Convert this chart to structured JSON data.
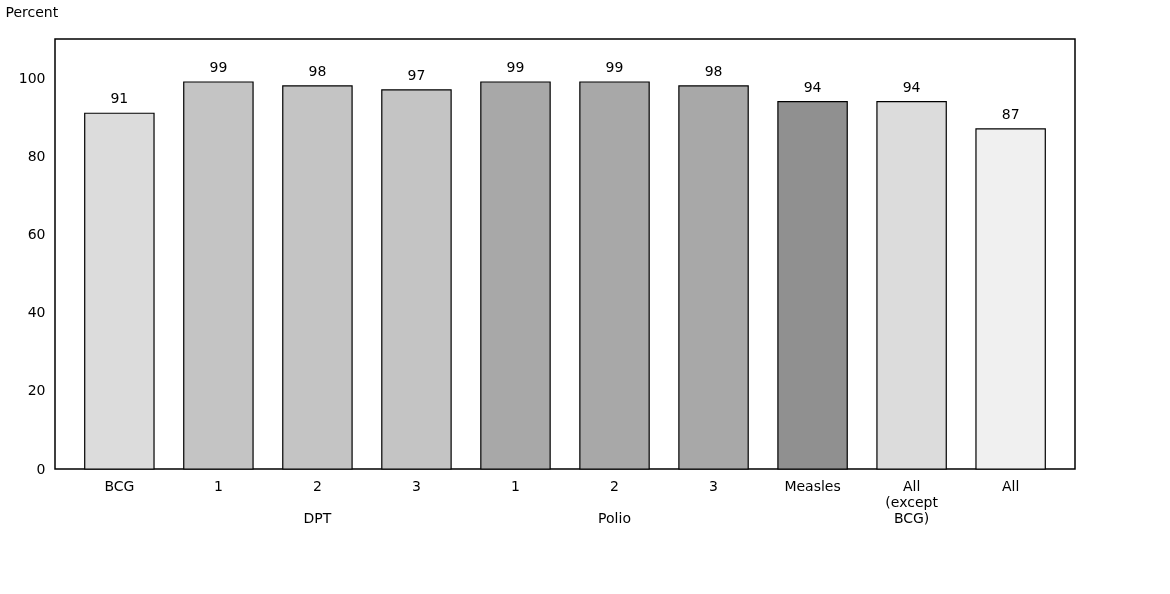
{
  "chart_data": {
    "type": "bar",
    "ylabel": "Percent",
    "categories": [
      "BCG",
      "1",
      "2",
      "3",
      "1",
      "2",
      "3",
      "Measles",
      "All (except BCG)",
      "All"
    ],
    "values": [
      91,
      99,
      98,
      97,
      99,
      99,
      98,
      94,
      94,
      87
    ],
    "colors": [
      "#dcdcdc",
      "#c4c4c4",
      "#c4c4c4",
      "#c4c4c4",
      "#a8a8a8",
      "#a8a8a8",
      "#a8a8a8",
      "#909090",
      "#dcdcdc",
      "#f0f0f0"
    ],
    "ylim": [
      0,
      110
    ],
    "yticks": [
      0,
      20,
      40,
      60,
      80,
      100
    ],
    "data_labels": true,
    "grid": false,
    "annotations": [
      "DPT",
      "Polio"
    ]
  }
}
